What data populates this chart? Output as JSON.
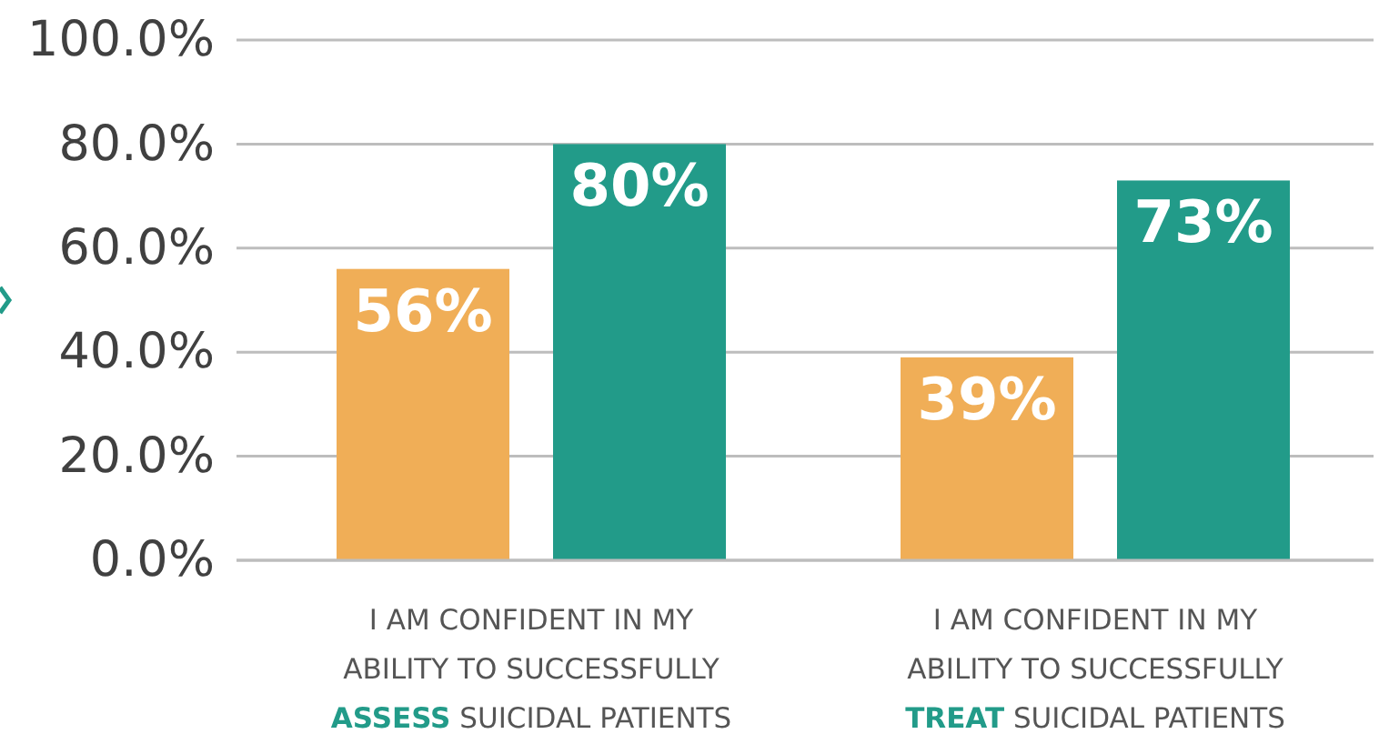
{
  "chart_data": {
    "type": "bar",
    "categories": [
      "I AM CONFIDENT IN MY ABILITY TO SUCCESSFULLY ASSESS SUICIDAL PATIENTS",
      "I AM CONFIDENT IN MY ABILITY TO SUCCESSFULLY TREAT SUICIDAL PATIENTS"
    ],
    "series": [
      {
        "color": "#f0ae57",
        "values": [
          56,
          39
        ],
        "value_labels": [
          "56%",
          "39%"
        ]
      },
      {
        "color": "#229b89",
        "values": [
          80,
          73
        ],
        "value_labels": [
          "80%",
          "73%"
        ]
      }
    ],
    "ylim": [
      0,
      100
    ],
    "yticks": [
      {
        "value": 0,
        "label": "0.0%"
      },
      {
        "value": 20,
        "label": "20.0%"
      },
      {
        "value": 40,
        "label": "40.0%"
      },
      {
        "value": 60,
        "label": "60.0%"
      },
      {
        "value": 80,
        "label": "80.0%"
      },
      {
        "value": 100,
        "label": "100.0%"
      }
    ],
    "grid": "y"
  }
}
